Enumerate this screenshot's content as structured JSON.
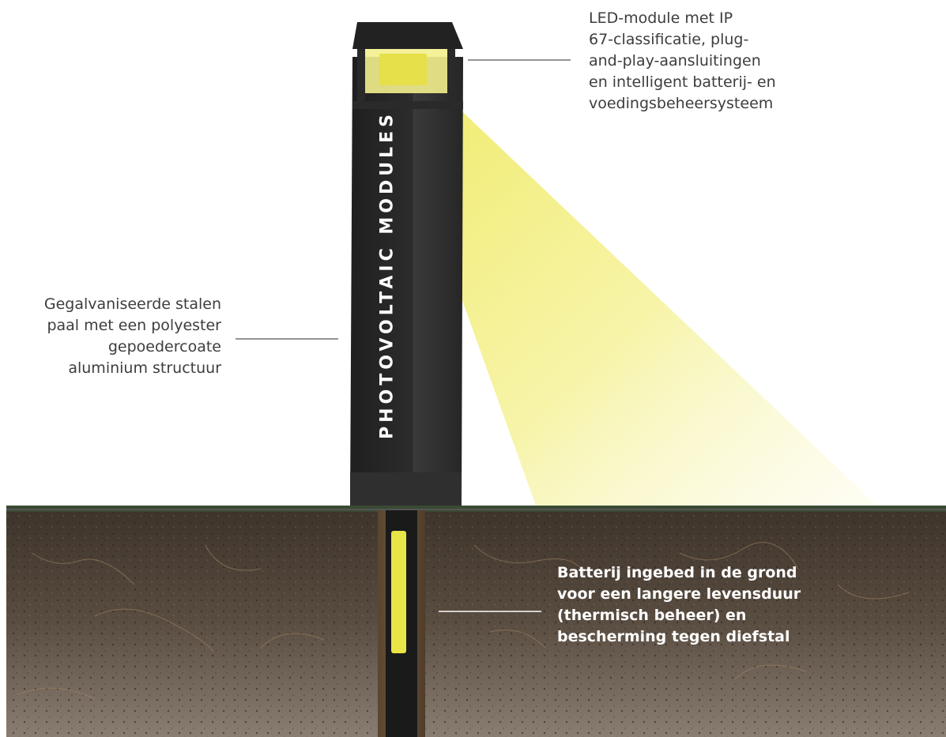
{
  "pole_text": "PHOTOVOLTAIC MODULES",
  "labels": {
    "led_module": [
      "LED-module met IP",
      "67-classificatie, plug-",
      "and-play-aansluitingen",
      "en intelligent batterij- en",
      "voedingsbeheersysteem"
    ],
    "pole": [
      "Gegalvaniseerde stalen",
      "paal met een polyester",
      "gepoedercoate",
      "aluminium structuur"
    ],
    "battery": [
      "Batterij ingebed in de grond",
      "voor een langere levensduur",
      "(thermisch beheer) en",
      "bescherming tegen diefstal"
    ]
  },
  "colors": {
    "pole": "#2b2b2b",
    "light_beam": "#f2ee7a",
    "battery": "#e8e547",
    "soil": "#4a3f36",
    "text": "#3d3d3d",
    "leader_line": "#555555"
  }
}
